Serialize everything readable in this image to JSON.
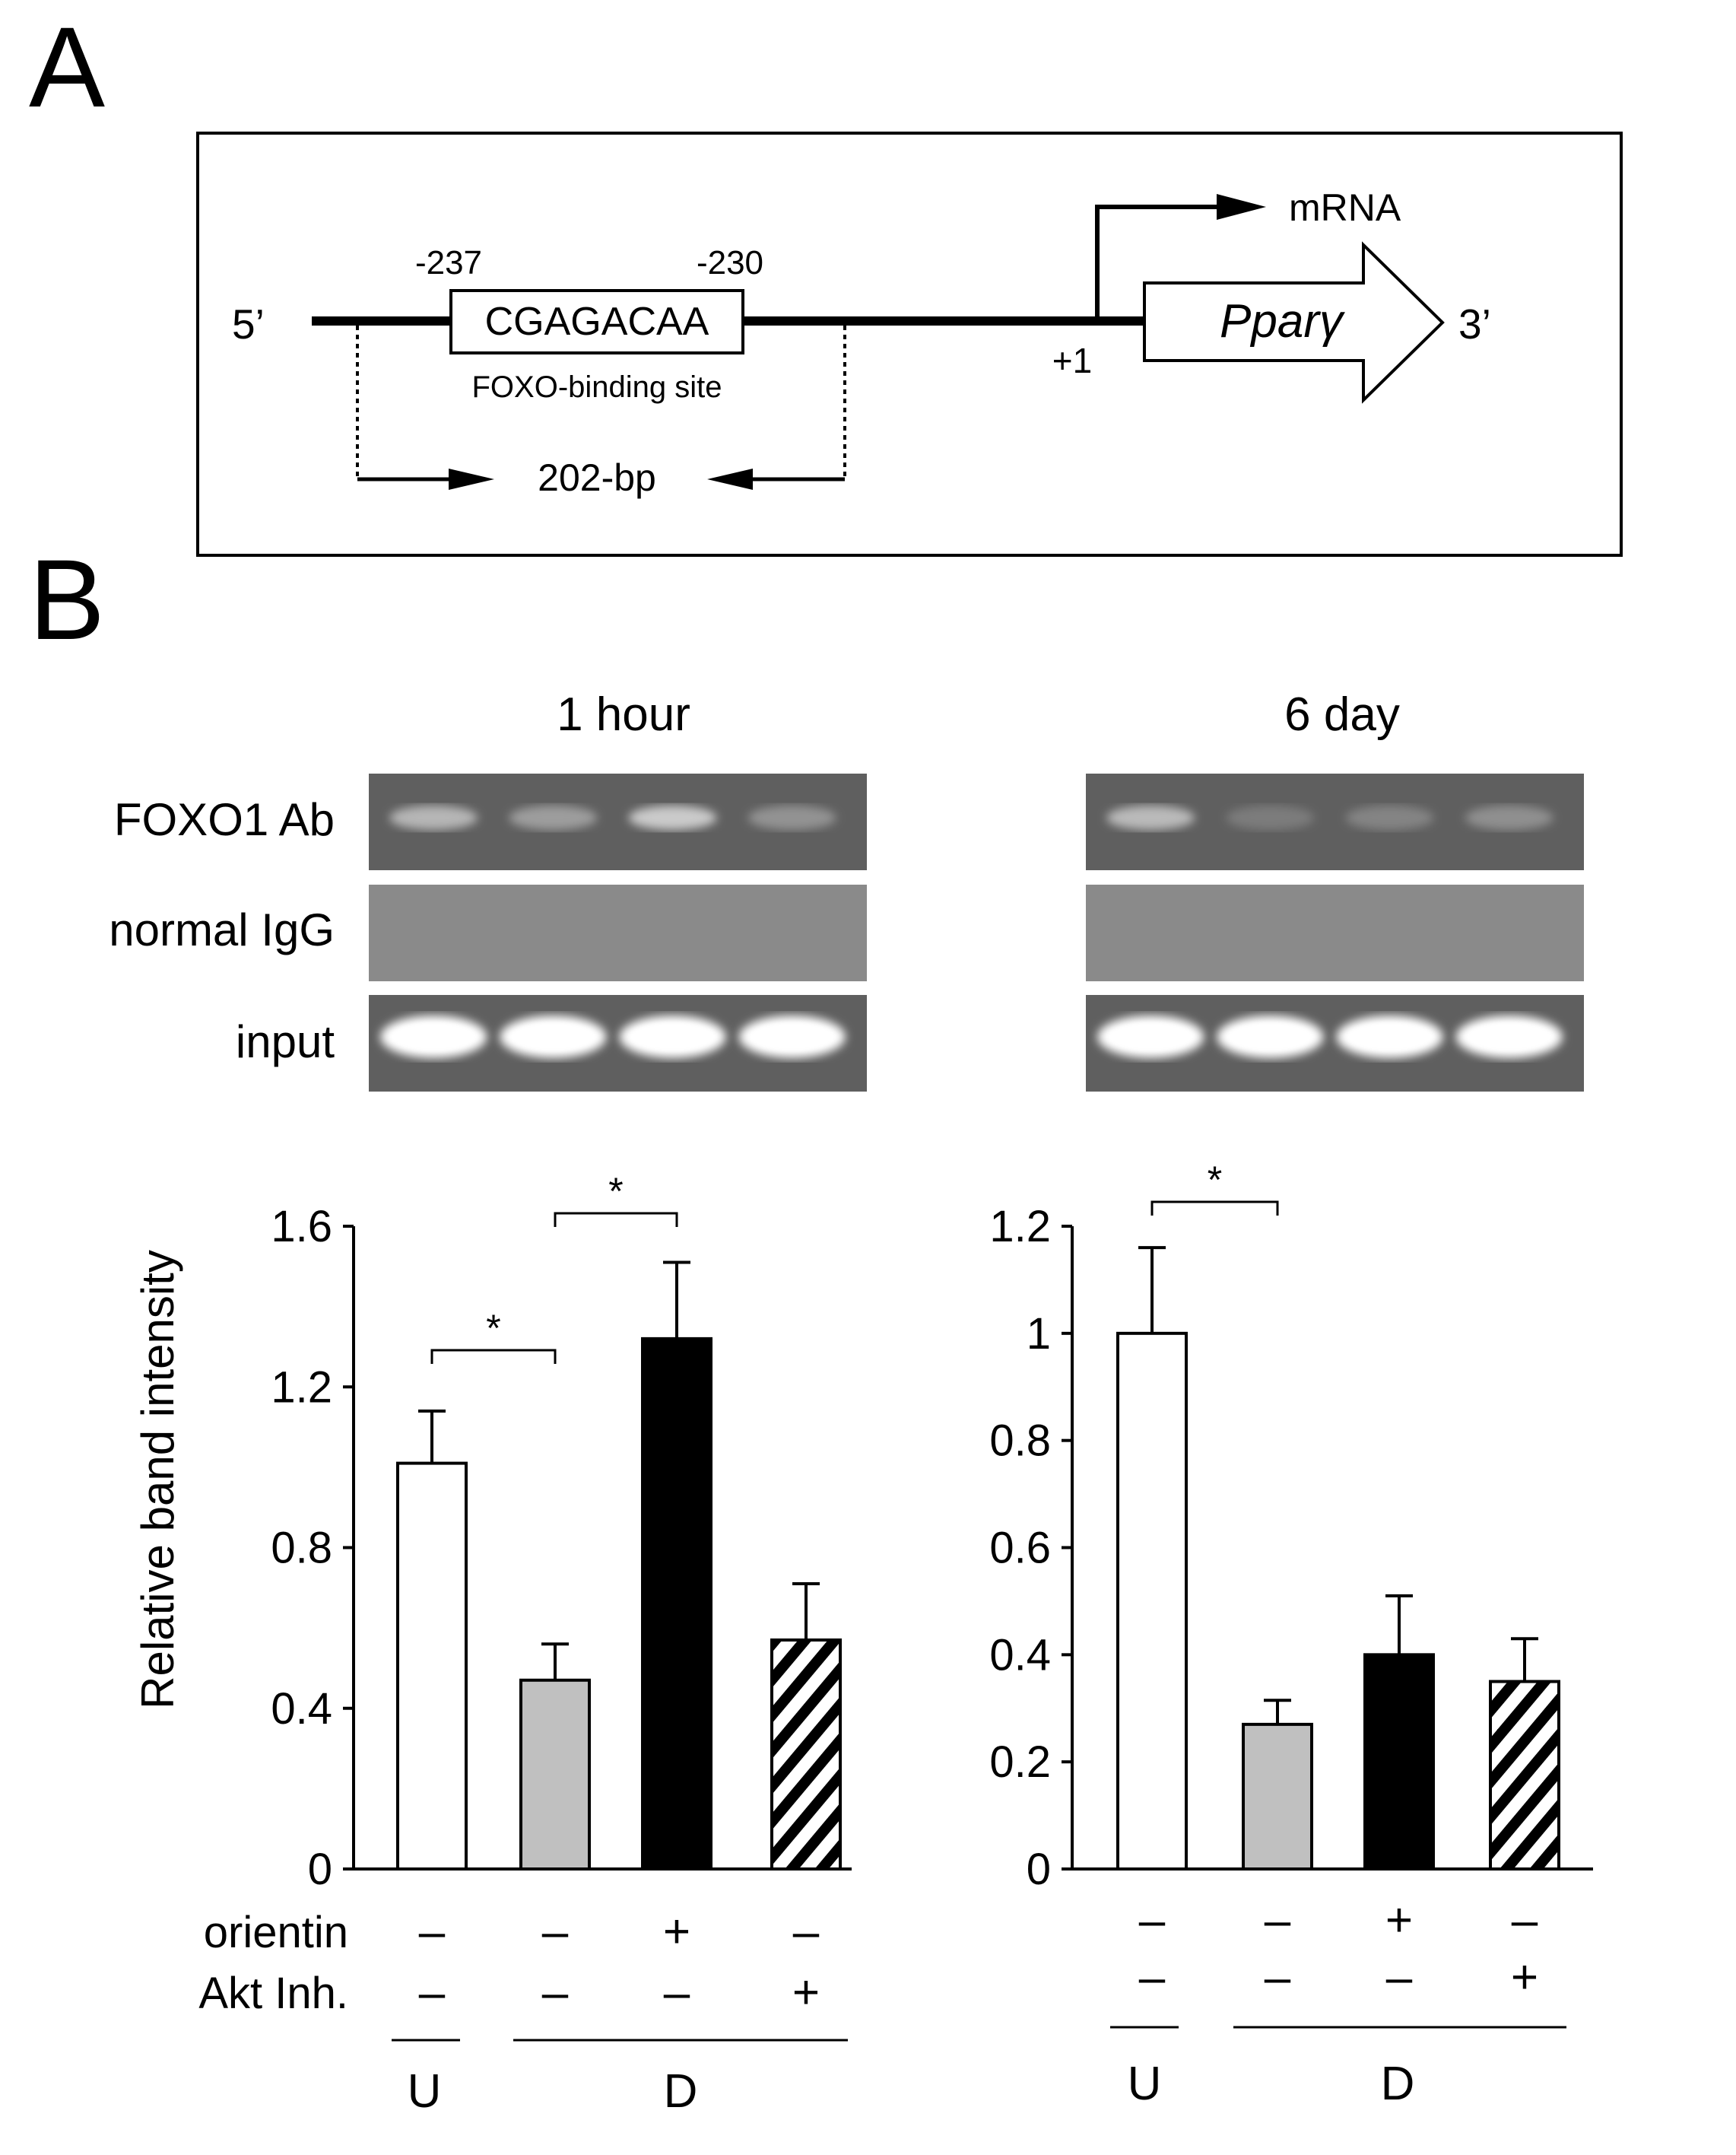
{
  "panel_a": {
    "label": "A",
    "five_prime": "5’",
    "three_prime": "3’",
    "pos_left": "-237",
    "pos_right": "-230",
    "sequence": "CGAGACAA",
    "site_label": "FOXO-binding site",
    "amplicon": "202-bp",
    "tss": "+1",
    "mrna": "mRNA",
    "gene": "Pparγ"
  },
  "panel_b": {
    "label": "B",
    "gel_rows": [
      "FOXO1 Ab",
      "normal IgG",
      "input"
    ],
    "gels": [
      {
        "title": "1 hour",
        "foxo_band": [
          0.55,
          0.35,
          0.75,
          0.25
        ]
      },
      {
        "title": "6 day",
        "foxo_band": [
          0.6,
          0.05,
          0.12,
          0.22
        ]
      }
    ],
    "ylabel": "Relative band intensity",
    "row_labels": [
      "orientin",
      "Akt Inh."
    ],
    "treatments": {
      "orientin": [
        "–",
        "–",
        "+",
        "–"
      ],
      "akt": [
        "–",
        "–",
        "–",
        "+"
      ]
    },
    "groups": [
      "U",
      "D"
    ]
  },
  "chart_data": [
    {
      "type": "bar",
      "title": "1 hour",
      "ylabel": "Relative band intensity",
      "categories": [
        "U",
        "D",
        "D + orientin",
        "D + Akt Inh."
      ],
      "values": [
        1.01,
        0.47,
        1.32,
        0.57
      ],
      "errors": [
        0.13,
        0.09,
        0.19,
        0.14
      ],
      "ylim": [
        0,
        1.6
      ],
      "yticks": [
        "0",
        "0.4",
        "0.8",
        "1.2",
        "1.6"
      ],
      "fills": [
        "white",
        "#c0c0c0",
        "black",
        "hatched"
      ],
      "significance": [
        {
          "from": 0,
          "to": 1,
          "label": "*"
        },
        {
          "from": 1,
          "to": 2,
          "label": "*"
        }
      ]
    },
    {
      "type": "bar",
      "title": "6 day",
      "categories": [
        "U",
        "D",
        "D + orientin",
        "D + Akt Inh."
      ],
      "values": [
        1.0,
        0.27,
        0.4,
        0.35
      ],
      "errors": [
        0.16,
        0.045,
        0.11,
        0.08
      ],
      "ylim": [
        0,
        1.2
      ],
      "yticks": [
        "0",
        "0.2",
        "0.4",
        "0.6",
        "0.8",
        "1",
        "1.2"
      ],
      "fills": [
        "white",
        "#c0c0c0",
        "black",
        "hatched"
      ],
      "significance": [
        {
          "from": 0,
          "to": 1,
          "label": "*"
        }
      ]
    }
  ]
}
